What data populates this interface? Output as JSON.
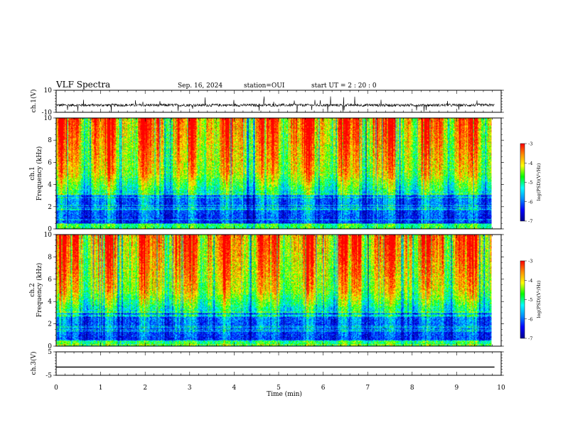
{
  "header": {
    "title": "VLF Spectra",
    "date": "Sep. 16, 2024",
    "station": "station=OUI",
    "start_ut": "start UT =  2 : 20 : 0"
  },
  "chart_data": [
    {
      "type": "line",
      "panel": "ch1-waveform",
      "ylabel": "ch.1(V)",
      "ylim": [
        -10,
        10
      ],
      "yticks": [
        "10",
        "-10"
      ],
      "xlim": [
        0,
        10
      ],
      "x_end_min": 9.85,
      "baseline": -3.5,
      "trace_color": "#000000"
    },
    {
      "type": "heatmap",
      "panel": "ch1-spectrogram",
      "ylabel": "ch.1\nFrequency (kHz)",
      "ylim": [
        0,
        10
      ],
      "yticks": [
        "0",
        "2",
        "4",
        "6",
        "8",
        "10"
      ],
      "xlim": [
        0,
        10
      ],
      "x_end_min": 9.85,
      "colorbar": {
        "label": "log(PSD)(V²/Hz)",
        "range": [
          -7,
          -3
        ],
        "ticks": [
          "-3",
          "-4",
          "-5",
          "-6",
          "-7"
        ]
      }
    },
    {
      "type": "heatmap",
      "panel": "ch2-spectrogram",
      "ylabel": "ch.2\nFrequency (kHz)",
      "ylim": [
        0,
        10
      ],
      "yticks": [
        "0",
        "2",
        "4",
        "6",
        "8",
        "10"
      ],
      "xlim": [
        0,
        10
      ],
      "x_end_min": 9.85,
      "colorbar": {
        "label": "log(PSD)(V²/Hz)",
        "range": [
          -7,
          -3
        ],
        "ticks": [
          "-3",
          "-4",
          "-5",
          "-6",
          "-7"
        ]
      }
    },
    {
      "type": "line",
      "panel": "ch3-waveform",
      "ylabel": "ch.3(V)",
      "ylim": [
        -5,
        5
      ],
      "yticks": [
        "5",
        "-5"
      ],
      "xlim": [
        0,
        10
      ],
      "x_end_min": 9.85,
      "constant_value": -1.5,
      "trace_color": "#000000"
    }
  ],
  "time_axis": {
    "label": "Time (min)",
    "ticks": [
      "0",
      "1",
      "2",
      "3",
      "4",
      "5",
      "6",
      "7",
      "8",
      "9",
      "10"
    ]
  },
  "colormap": [
    "#000090",
    "#0000ff",
    "#0090ff",
    "#00ffff",
    "#00ff00",
    "#ffff00",
    "#ff9000",
    "#ff0000",
    "#ffffff"
  ]
}
